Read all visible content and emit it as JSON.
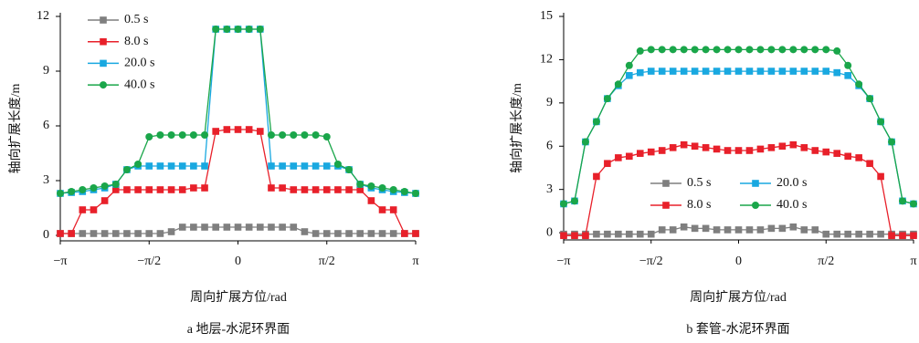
{
  "chart_data": [
    {
      "type": "line",
      "caption": "a 地层-水泥环界面",
      "xlabel": "周向扩展方位/rad",
      "ylabel": "轴向扩展长度/m",
      "xlim": [
        -3.1416,
        3.1416
      ],
      "ylim": [
        -0.3,
        12
      ],
      "xticks": [
        {
          "value": -3.1416,
          "label": "−π"
        },
        {
          "value": -1.5708,
          "label": "−π/2"
        },
        0,
        {
          "value": 1.5708,
          "label": "π/2"
        },
        {
          "value": 3.1416,
          "label": "π"
        }
      ],
      "yticks": [
        0,
        3,
        6,
        9,
        12
      ],
      "legend": "upper left",
      "x": [
        -3.1416,
        -2.9452,
        -2.7489,
        -2.5525,
        -2.3562,
        -2.1598,
        -1.9635,
        -1.7671,
        -1.5708,
        -1.3744,
        -1.1781,
        -0.9817,
        -0.7854,
        -0.589,
        -0.3927,
        -0.1963,
        0,
        0.1963,
        0.3927,
        0.589,
        0.7854,
        0.9817,
        1.1781,
        1.3744,
        1.5708,
        1.7671,
        1.9635,
        2.1598,
        2.3562,
        2.5525,
        2.7489,
        2.9452,
        3.1416
      ],
      "series": [
        {
          "name": "0.5 s",
          "color": "#7f7f7f",
          "marker": "square",
          "values": [
            0.1,
            0.1,
            0.1,
            0.1,
            0.1,
            0.1,
            0.1,
            0.1,
            0.1,
            0.1,
            0.2,
            0.45,
            0.45,
            0.45,
            0.45,
            0.45,
            0.45,
            0.45,
            0.45,
            0.45,
            0.45,
            0.45,
            0.2,
            0.1,
            0.1,
            0.1,
            0.1,
            0.1,
            0.1,
            0.1,
            0.1,
            0.1,
            0.1
          ]
        },
        {
          "name": "8.0 s",
          "color": "#e8202a",
          "marker": "square",
          "values": [
            0.1,
            0.1,
            1.4,
            1.4,
            1.9,
            2.5,
            2.5,
            2.5,
            2.5,
            2.5,
            2.5,
            2.5,
            2.6,
            2.6,
            5.7,
            5.8,
            5.8,
            5.8,
            5.7,
            2.6,
            2.6,
            2.5,
            2.5,
            2.5,
            2.5,
            2.5,
            2.5,
            2.5,
            1.9,
            1.4,
            1.4,
            0.1,
            0.1
          ]
        },
        {
          "name": "20.0 s",
          "color": "#19a8e0",
          "marker": "square",
          "values": [
            2.3,
            2.35,
            2.4,
            2.5,
            2.6,
            2.8,
            3.6,
            3.8,
            3.8,
            3.8,
            3.8,
            3.8,
            3.8,
            3.8,
            11.3,
            11.3,
            11.3,
            11.3,
            11.3,
            3.8,
            3.8,
            3.8,
            3.8,
            3.8,
            3.8,
            3.8,
            3.6,
            2.8,
            2.6,
            2.5,
            2.4,
            2.35,
            2.3
          ]
        },
        {
          "name": "40.0 s",
          "color": "#1aa64a",
          "marker": "circle",
          "values": [
            2.3,
            2.4,
            2.5,
            2.6,
            2.7,
            2.8,
            3.6,
            3.9,
            5.4,
            5.5,
            5.5,
            5.5,
            5.5,
            5.5,
            11.3,
            11.3,
            11.3,
            11.3,
            11.3,
            5.5,
            5.5,
            5.5,
            5.5,
            5.5,
            5.4,
            3.9,
            3.6,
            2.8,
            2.7,
            2.6,
            2.5,
            2.4,
            2.3
          ]
        }
      ]
    },
    {
      "type": "line",
      "caption": "b 套管-水泥环界面",
      "xlabel": "周向扩展方位/rad",
      "ylabel": "轴向扩展长度/m",
      "xlim": [
        -3.1416,
        3.1416
      ],
      "ylim": [
        -0.5,
        15
      ],
      "xticks": [
        {
          "value": -3.1416,
          "label": "−π"
        },
        {
          "value": -1.5708,
          "label": "−π/2"
        },
        0,
        {
          "value": 1.5708,
          "label": "π/2"
        },
        {
          "value": 3.1416,
          "label": "π"
        }
      ],
      "yticks": [
        0,
        3,
        6,
        9,
        12,
        15
      ],
      "legend": "lower center",
      "x": [
        -3.1416,
        -2.9452,
        -2.7489,
        -2.5525,
        -2.3562,
        -2.1598,
        -1.9635,
        -1.7671,
        -1.5708,
        -1.3744,
        -1.1781,
        -0.9817,
        -0.7854,
        -0.589,
        -0.3927,
        -0.1963,
        0,
        0.1963,
        0.3927,
        0.589,
        0.7854,
        0.9817,
        1.1781,
        1.3744,
        1.5708,
        1.7671,
        1.9635,
        2.1598,
        2.3562,
        2.5525,
        2.7489,
        2.9452,
        3.1416
      ],
      "series": [
        {
          "name": "0.5 s",
          "color": "#7f7f7f",
          "marker": "square",
          "values": [
            -0.1,
            -0.1,
            -0.1,
            -0.1,
            -0.1,
            -0.1,
            -0.1,
            -0.1,
            -0.1,
            0.2,
            0.2,
            0.4,
            0.3,
            0.3,
            0.2,
            0.2,
            0.2,
            0.2,
            0.2,
            0.3,
            0.3,
            0.4,
            0.2,
            0.2,
            -0.1,
            -0.1,
            -0.1,
            -0.1,
            -0.1,
            -0.1,
            -0.1,
            -0.1,
            -0.1
          ]
        },
        {
          "name": "8.0 s",
          "color": "#e8202a",
          "marker": "square",
          "values": [
            -0.2,
            -0.2,
            -0.2,
            3.9,
            4.8,
            5.2,
            5.3,
            5.5,
            5.6,
            5.7,
            5.9,
            6.1,
            6.0,
            5.9,
            5.8,
            5.7,
            5.7,
            5.7,
            5.8,
            5.9,
            6.0,
            6.1,
            5.9,
            5.7,
            5.6,
            5.5,
            5.3,
            5.2,
            4.8,
            3.9,
            -0.2,
            -0.2,
            -0.2
          ]
        },
        {
          "name": "20.0 s",
          "color": "#19a8e0",
          "marker": "square",
          "values": [
            2.0,
            2.2,
            6.3,
            7.7,
            9.3,
            10.2,
            10.9,
            11.1,
            11.2,
            11.2,
            11.2,
            11.2,
            11.2,
            11.2,
            11.2,
            11.2,
            11.2,
            11.2,
            11.2,
            11.2,
            11.2,
            11.2,
            11.2,
            11.2,
            11.2,
            11.1,
            10.9,
            10.2,
            9.3,
            7.7,
            6.3,
            2.2,
            2.0
          ]
        },
        {
          "name": "40.0 s",
          "color": "#1aa64a",
          "marker": "circle",
          "values": [
            2.0,
            2.2,
            6.3,
            7.7,
            9.3,
            10.3,
            11.6,
            12.6,
            12.7,
            12.7,
            12.7,
            12.7,
            12.7,
            12.7,
            12.7,
            12.7,
            12.7,
            12.7,
            12.7,
            12.7,
            12.7,
            12.7,
            12.7,
            12.7,
            12.7,
            12.6,
            11.6,
            10.3,
            9.3,
            7.7,
            6.3,
            2.2,
            2.0
          ]
        }
      ]
    }
  ]
}
